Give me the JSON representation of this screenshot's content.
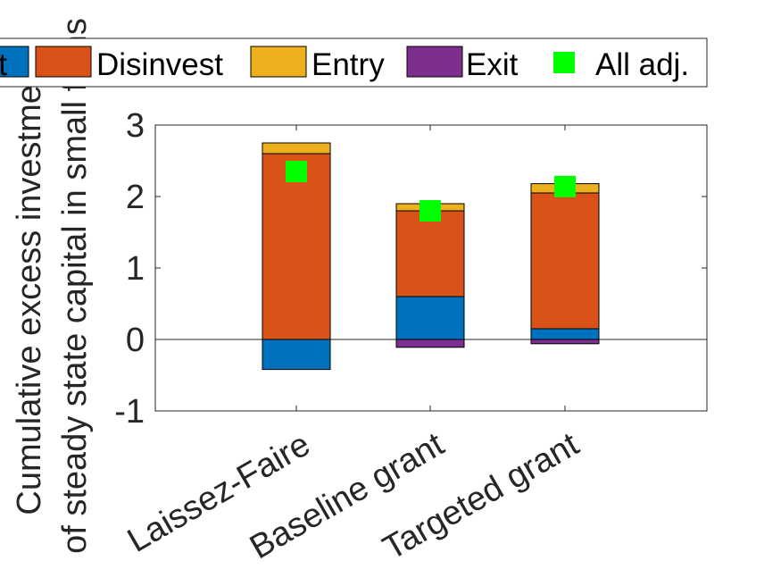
{
  "chart_data": {
    "type": "bar",
    "stacked": true,
    "categories": [
      "Laissez-Faire",
      "Baseline grant",
      "Targeted grant"
    ],
    "ylabel_lines": [
      "Cumulative excess investment",
      "of steady state capital in small firms"
    ],
    "ylim": [
      -1,
      3
    ],
    "yticks": [
      -1,
      0,
      1,
      2,
      3
    ],
    "grid": false,
    "legend_position": "top",
    "series": [
      {
        "name": "Invest",
        "color": "#0072BD",
        "values": [
          -0.42,
          0.6,
          0.15
        ]
      },
      {
        "name": "Disinvest",
        "color": "#D95319",
        "values": [
          2.6,
          1.2,
          1.9
        ]
      },
      {
        "name": "Entry",
        "color": "#EDB120",
        "values": [
          0.15,
          0.1,
          0.13
        ]
      },
      {
        "name": "Exit",
        "color": "#7E2F8E",
        "values": [
          0.0,
          -0.11,
          -0.06
        ]
      }
    ],
    "markers": {
      "name": "All adj.",
      "color": "#00FF00",
      "values": [
        2.35,
        1.8,
        2.14
      ]
    }
  }
}
